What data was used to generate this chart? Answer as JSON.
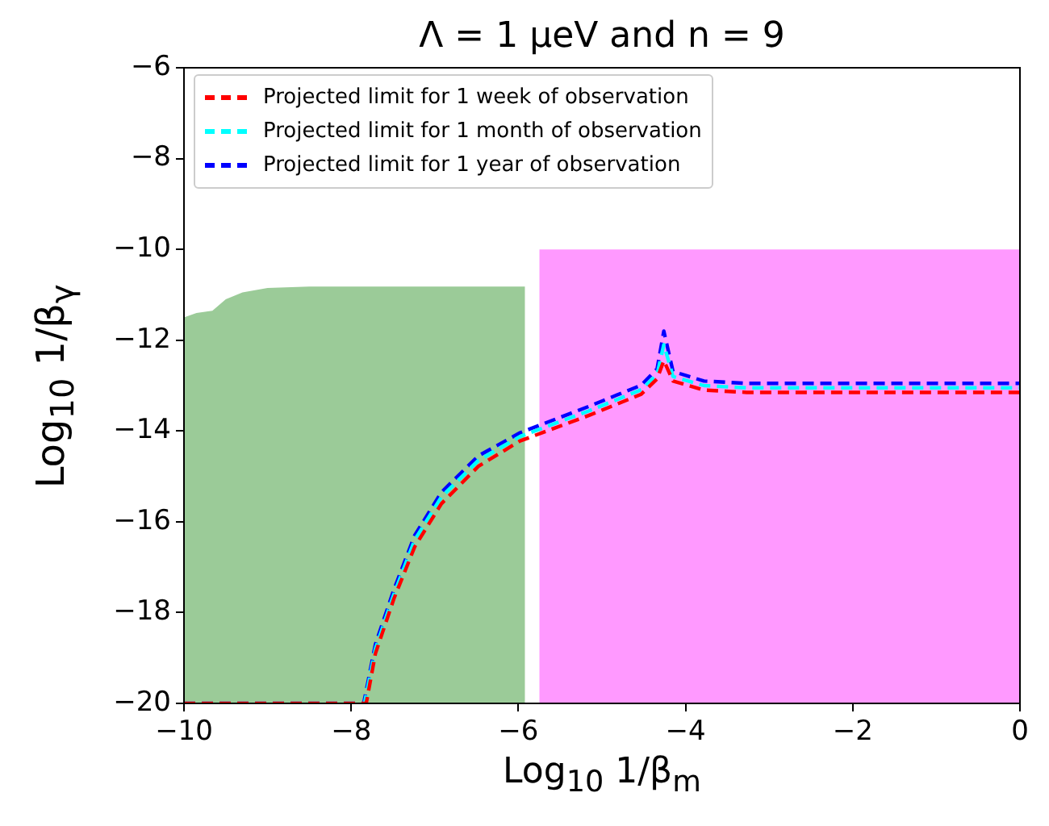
{
  "chart_data": {
    "type": "line",
    "title": "Λ = 1 μeV and n = 9",
    "xlabel": "Log$_{10}$ 1/β$_{m}$",
    "ylabel": "Log$_{10}$ 1/β$_{γ}$",
    "xlim": [
      -10,
      0
    ],
    "xticks": [
      -10,
      -8,
      -6,
      -4,
      -2,
      0
    ],
    "ylim": [
      -20,
      -6
    ],
    "yticks": [
      -20,
      -18,
      -16,
      -14,
      -12,
      -10,
      -8,
      -6
    ],
    "grid": false,
    "legend": "top left",
    "marker": "none",
    "line_style": "dashed",
    "series": [
      {
        "type": "area",
        "color": "#9bcb98",
        "x": [
          -10,
          -10,
          -9.85,
          -9.66,
          -9.5,
          -9.3,
          -9.0,
          -8.5,
          -5.92,
          -5.92
        ],
        "values": [
          -20,
          -11.5,
          -11.4,
          -11.35,
          -11.1,
          -10.95,
          -10.85,
          -10.82,
          -10.82,
          -20
        ]
      },
      {
        "type": "area",
        "color": "#ff99ff",
        "x": [
          -5.75,
          -5.75,
          0,
          0
        ],
        "values": [
          -20,
          -10,
          -10,
          -20
        ]
      },
      {
        "type": "line",
        "name": "Projected limit for 1 week of observation",
        "color": "#ff0000",
        "x": [
          -10,
          -7.82,
          -7.71,
          -7.49,
          -7.24,
          -6.92,
          -6.48,
          -5.98,
          -5.16,
          -4.53,
          -4.34,
          -4.26,
          -4.15,
          -3.78,
          -3.27,
          0
        ],
        "values": [
          -20,
          -20,
          -18.9,
          -17.7,
          -16.55,
          -15.6,
          -14.78,
          -14.22,
          -13.66,
          -13.19,
          -12.85,
          -12.45,
          -12.9,
          -13.1,
          -13.15,
          -13.15
        ]
      },
      {
        "type": "line",
        "name": "Projected limit for 1 month of observation",
        "color": "#00ffff",
        "x": [
          -10,
          -7.84,
          -7.71,
          -7.49,
          -7.24,
          -6.92,
          -6.48,
          -5.98,
          -5.16,
          -4.53,
          -4.34,
          -4.26,
          -4.15,
          -3.78,
          -3.27,
          0
        ],
        "values": [
          -20,
          -20,
          -18.8,
          -17.6,
          -16.4,
          -15.45,
          -14.65,
          -14.12,
          -13.56,
          -13.09,
          -12.75,
          -12.1,
          -12.8,
          -13.0,
          -13.05,
          -13.05
        ]
      },
      {
        "type": "line",
        "name": "Projected limit for 1 year of observation",
        "color": "#0000ff",
        "x": [
          -10,
          -7.85,
          -7.71,
          -7.49,
          -7.24,
          -6.92,
          -6.48,
          -5.98,
          -5.16,
          -4.53,
          -4.34,
          -4.26,
          -4.15,
          -3.78,
          -3.27,
          0
        ],
        "values": [
          -20,
          -20,
          -18.7,
          -17.5,
          -16.3,
          -15.35,
          -14.55,
          -14.04,
          -13.46,
          -12.99,
          -12.63,
          -11.8,
          -12.69,
          -12.9,
          -12.95,
          -12.95
        ]
      }
    ]
  }
}
